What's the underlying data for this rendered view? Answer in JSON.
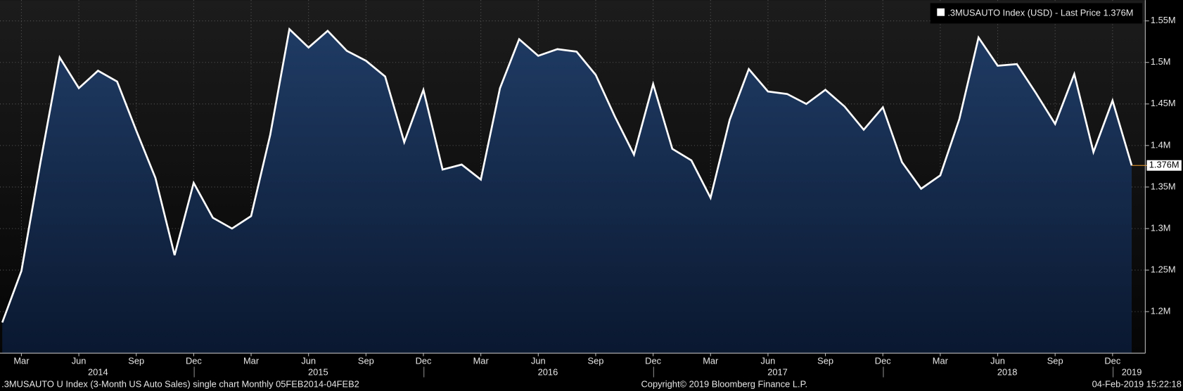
{
  "chart_data": {
    "type": "area",
    "series": [
      {
        "name": ".3MUSAUTO Index (USD)",
        "color": "#ffffff",
        "fill": "#1b355c",
        "values": [
          1187000,
          1249000,
          1380000,
          1506000,
          1469000,
          1490000,
          1477000,
          1418000,
          1361000,
          1268000,
          1355000,
          1313000,
          1300000,
          1315000,
          1413000,
          1540000,
          1518000,
          1538000,
          1514000,
          1502000,
          1483000,
          1404000,
          1467000,
          1371000,
          1377000,
          1359000,
          1469000,
          1528000,
          1508000,
          1516000,
          1513000,
          1485000,
          1435000,
          1389000,
          1474000,
          1396000,
          1382000,
          1337000,
          1431000,
          1492000,
          1465000,
          1462000,
          1450000,
          1467000,
          1447000,
          1419000,
          1446000,
          1380000,
          1348000,
          1364000,
          1432000,
          1530000,
          1496000,
          1498000,
          1463000,
          1426000,
          1486000,
          1392000,
          1454000,
          1376000
        ]
      }
    ],
    "x": [
      "2014-02",
      "2014-03",
      "2014-04",
      "2014-05",
      "2014-06",
      "2014-07",
      "2014-08",
      "2014-09",
      "2014-10",
      "2014-11",
      "2014-12",
      "2015-01",
      "2015-02",
      "2015-03",
      "2015-04",
      "2015-05",
      "2015-06",
      "2015-07",
      "2015-08",
      "2015-09",
      "2015-10",
      "2015-11",
      "2015-12",
      "2016-01",
      "2016-02",
      "2016-03",
      "2016-04",
      "2016-05",
      "2016-06",
      "2016-07",
      "2016-08",
      "2016-09",
      "2016-10",
      "2016-11",
      "2016-12",
      "2017-01",
      "2017-02",
      "2017-03",
      "2017-04",
      "2017-05",
      "2017-06",
      "2017-07",
      "2017-08",
      "2017-09",
      "2017-10",
      "2017-11",
      "2017-12",
      "2018-01",
      "2018-02",
      "2018-03",
      "2018-04",
      "2018-05",
      "2018-06",
      "2018-07",
      "2018-08",
      "2018-09",
      "2018-10",
      "2018-11",
      "2018-12",
      "2019-01"
    ],
    "legend_caption": "- Last Price",
    "last_label": "1.376M",
    "ylim": [
      1150000,
      1575000
    ],
    "yticks": [
      {
        "value": 1200000,
        "label": "1.2M"
      },
      {
        "value": 1250000,
        "label": "1.25M"
      },
      {
        "value": 1300000,
        "label": "1.3M"
      },
      {
        "value": 1350000,
        "label": "1.35M"
      },
      {
        "value": 1400000,
        "label": "1.4M"
      },
      {
        "value": 1450000,
        "label": "1.45M"
      },
      {
        "value": 1500000,
        "label": "1.5M"
      },
      {
        "value": 1550000,
        "label": "1.55M"
      }
    ],
    "xticks": [
      {
        "value": "2014-03",
        "label": "Mar"
      },
      {
        "value": "2014-06",
        "label": "Jun"
      },
      {
        "value": "2014-09",
        "label": "Sep"
      },
      {
        "value": "2014-12",
        "label": "Dec"
      },
      {
        "value": "2015-03",
        "label": "Mar"
      },
      {
        "value": "2015-06",
        "label": "Jun"
      },
      {
        "value": "2015-09",
        "label": "Sep"
      },
      {
        "value": "2015-12",
        "label": "Dec"
      },
      {
        "value": "2016-03",
        "label": "Mar"
      },
      {
        "value": "2016-06",
        "label": "Jun"
      },
      {
        "value": "2016-09",
        "label": "Sep"
      },
      {
        "value": "2016-12",
        "label": "Dec"
      },
      {
        "value": "2017-03",
        "label": "Mar"
      },
      {
        "value": "2017-06",
        "label": "Jun"
      },
      {
        "value": "2017-09",
        "label": "Sep"
      },
      {
        "value": "2017-12",
        "label": "Dec"
      },
      {
        "value": "2018-03",
        "label": "Mar"
      },
      {
        "value": "2018-06",
        "label": "Jun"
      },
      {
        "value": "2018-09",
        "label": "Sep"
      },
      {
        "value": "2018-12",
        "label": "Dec"
      }
    ],
    "year_labels": [
      2014,
      2015,
      2016,
      2017,
      2018,
      2019
    ],
    "grid": true,
    "legend": "upper right",
    "footer_left": ".3MUSAUTO U Index (3-Month US Auto Sales) single chart  Monthly 05FEB2014-04FEB2",
    "footer_center": "Copyright© 2019 Bloomberg Finance L.P.",
    "footer_right": "04-Feb-2019 15:22:18"
  }
}
